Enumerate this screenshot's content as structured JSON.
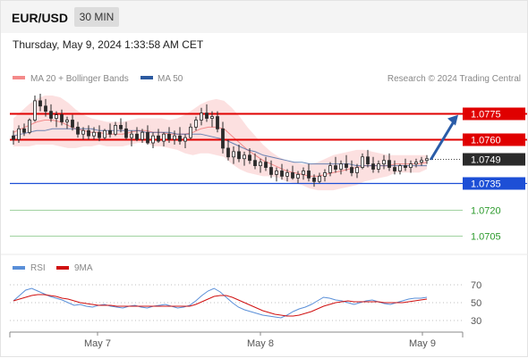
{
  "header": {
    "symbol": "EUR/USD",
    "timeframe": "30 MIN",
    "datetime": "Thursday, May 9, 2024 1:33:58 AM CET"
  },
  "legend": {
    "bb": "MA 20 + Bollinger Bands",
    "ma50": "MA 50",
    "credit": "Research © 2024 Trading Central",
    "rsi": "RSI",
    "ma9": "9MA"
  },
  "colors": {
    "bb_line": "#f48a8a",
    "bb_band": "#fbd6d6",
    "ma50": "#2c5aa0",
    "resistance": "#e00000",
    "support": "#1d4fd6",
    "target": "#2b9a2b",
    "arrow": "#2a5ca8",
    "candle_up": "#2a2a2a",
    "candle_down": "#2a2a2a",
    "rsi_line": "#5a8fd8",
    "rsi_ma": "#d01010"
  },
  "chart_data": [
    {
      "type": "line",
      "name": "price",
      "ylim": [
        1.07,
        1.0785
      ],
      "levels": [
        {
          "label": "1.0775",
          "value": 1.0775,
          "kind": "resistance"
        },
        {
          "label": "1.0760",
          "value": 1.076,
          "kind": "resistance"
        },
        {
          "label": "1.0749",
          "value": 1.0749,
          "kind": "current"
        },
        {
          "label": "1.0735",
          "value": 1.0735,
          "kind": "support"
        },
        {
          "label": "1.0720",
          "value": 1.072,
          "kind": "target"
        },
        {
          "label": "1.0705",
          "value": 1.0705,
          "kind": "target"
        }
      ],
      "x_ticks": [
        "May 7",
        "May 8",
        "May 9"
      ],
      "arrow": {
        "from": 1.0749,
        "to": 1.0775,
        "direction": "up"
      },
      "candles": [
        [
          1.0762,
          1.0765,
          1.0757,
          1.076
        ],
        [
          1.076,
          1.0768,
          1.0758,
          1.0766
        ],
        [
          1.0766,
          1.0769,
          1.0762,
          1.0764
        ],
        [
          1.0764,
          1.0772,
          1.0763,
          1.0771
        ],
        [
          1.0771,
          1.0785,
          1.077,
          1.0782
        ],
        [
          1.0782,
          1.0786,
          1.0776,
          1.0779
        ],
        [
          1.0779,
          1.0783,
          1.0773,
          1.0776
        ],
        [
          1.0776,
          1.078,
          1.077,
          1.0772
        ],
        [
          1.0772,
          1.0776,
          1.0767,
          1.0774
        ],
        [
          1.0774,
          1.0777,
          1.0768,
          1.077
        ],
        [
          1.077,
          1.0773,
          1.0766,
          1.0771
        ],
        [
          1.0771,
          1.0774,
          1.0765,
          1.0767
        ],
        [
          1.0767,
          1.077,
          1.0761,
          1.0763
        ],
        [
          1.0763,
          1.0767,
          1.076,
          1.0765
        ],
        [
          1.0765,
          1.0768,
          1.076,
          1.0762
        ],
        [
          1.0762,
          1.0767,
          1.076,
          1.0764
        ],
        [
          1.0764,
          1.0768,
          1.0759,
          1.0761
        ],
        [
          1.0761,
          1.0766,
          1.076,
          1.0765
        ],
        [
          1.0765,
          1.0769,
          1.0761,
          1.0763
        ],
        [
          1.0763,
          1.077,
          1.0762,
          1.0768
        ],
        [
          1.0768,
          1.0772,
          1.0764,
          1.0766
        ],
        [
          1.0766,
          1.077,
          1.076,
          1.0761
        ],
        [
          1.0761,
          1.0765,
          1.0756,
          1.0763
        ],
        [
          1.0763,
          1.0767,
          1.0759,
          1.076
        ],
        [
          1.076,
          1.0766,
          1.0758,
          1.0764
        ],
        [
          1.0764,
          1.0768,
          1.0757,
          1.0758
        ],
        [
          1.0758,
          1.0764,
          1.0755,
          1.0762
        ],
        [
          1.0762,
          1.0766,
          1.0758,
          1.0759
        ],
        [
          1.0759,
          1.0764,
          1.0756,
          1.0763
        ],
        [
          1.0763,
          1.0767,
          1.0758,
          1.076
        ],
        [
          1.076,
          1.0765,
          1.0757,
          1.0762
        ],
        [
          1.0762,
          1.0767,
          1.0757,
          1.0759
        ],
        [
          1.0759,
          1.0763,
          1.0755,
          1.0761
        ],
        [
          1.0761,
          1.0769,
          1.076,
          1.0767
        ],
        [
          1.0767,
          1.0773,
          1.0765,
          1.0771
        ],
        [
          1.0771,
          1.0778,
          1.0768,
          1.0775
        ],
        [
          1.0775,
          1.078,
          1.077,
          1.0772
        ],
        [
          1.0772,
          1.0776,
          1.0767,
          1.0773
        ],
        [
          1.0773,
          1.0776,
          1.0764,
          1.0766
        ],
        [
          1.0766,
          1.077,
          1.0752,
          1.0755
        ],
        [
          1.0755,
          1.076,
          1.0748,
          1.075
        ],
        [
          1.075,
          1.0756,
          1.0746,
          1.0753
        ],
        [
          1.0753,
          1.0757,
          1.0747,
          1.0749
        ],
        [
          1.0749,
          1.0753,
          1.0745,
          1.0751
        ],
        [
          1.0751,
          1.0755,
          1.0746,
          1.0748
        ],
        [
          1.0748,
          1.0752,
          1.0743,
          1.0745
        ],
        [
          1.0745,
          1.0749,
          1.0741,
          1.0747
        ],
        [
          1.0747,
          1.075,
          1.0742,
          1.0744
        ],
        [
          1.0744,
          1.0748,
          1.0738,
          1.074
        ],
        [
          1.074,
          1.0744,
          1.0736,
          1.0742
        ],
        [
          1.0742,
          1.0746,
          1.0737,
          1.0739
        ],
        [
          1.0739,
          1.0743,
          1.0736,
          1.0741
        ],
        [
          1.0741,
          1.0745,
          1.0737,
          1.0738
        ],
        [
          1.0738,
          1.0742,
          1.0735,
          1.074
        ],
        [
          1.074,
          1.0744,
          1.0737,
          1.0742
        ],
        [
          1.0742,
          1.0746,
          1.0736,
          1.0738
        ],
        [
          1.0738,
          1.074,
          1.0733,
          1.0736
        ],
        [
          1.0736,
          1.0741,
          1.0735,
          1.0739
        ],
        [
          1.0739,
          1.0743,
          1.0736,
          1.0741
        ],
        [
          1.0741,
          1.0747,
          1.0739,
          1.0745
        ],
        [
          1.0745,
          1.075,
          1.0741,
          1.0743
        ],
        [
          1.0743,
          1.0748,
          1.074,
          1.0746
        ],
        [
          1.0746,
          1.0751,
          1.0742,
          1.0744
        ],
        [
          1.0744,
          1.0748,
          1.0739,
          1.0741
        ],
        [
          1.0741,
          1.0746,
          1.0738,
          1.0744
        ],
        [
          1.0744,
          1.0752,
          1.0743,
          1.075
        ],
        [
          1.075,
          1.0754,
          1.0744,
          1.0746
        ],
        [
          1.0746,
          1.075,
          1.0741,
          1.0743
        ],
        [
          1.0743,
          1.0748,
          1.0741,
          1.0746
        ],
        [
          1.0746,
          1.0751,
          1.0743,
          1.0748
        ],
        [
          1.0748,
          1.0752,
          1.0742,
          1.0744
        ],
        [
          1.0744,
          1.0748,
          1.074,
          1.0742
        ],
        [
          1.0742,
          1.0746,
          1.074,
          1.0745
        ],
        [
          1.0745,
          1.0749,
          1.0742,
          1.0744
        ],
        [
          1.0744,
          1.0748,
          1.0741,
          1.0746
        ],
        [
          1.0746,
          1.0749,
          1.0744,
          1.0747
        ],
        [
          1.0747,
          1.075,
          1.0745,
          1.0748
        ],
        [
          1.0748,
          1.0751,
          1.0746,
          1.0749
        ]
      ],
      "bollinger_mid": [
        1.0764,
        1.0766,
        1.0768,
        1.077,
        1.0771,
        1.0771,
        1.077,
        1.0768,
        1.0766,
        1.0765,
        1.0764,
        1.0764,
        1.0763,
        1.0763,
        1.0763,
        1.0764,
        1.0765,
        1.0765,
        1.0764,
        1.0764,
        1.0763,
        1.0763,
        1.0763,
        1.0764,
        1.0766,
        1.0767,
        1.0767,
        1.0766,
        1.0762,
        1.0758,
        1.0754,
        1.0751,
        1.0748,
        1.0746,
        1.0744,
        1.0742,
        1.0741,
        1.074,
        1.0739,
        1.0739,
        1.074,
        1.0741,
        1.0742,
        1.0743,
        1.0744,
        1.0745,
        1.0745,
        1.0745,
        1.0745,
        1.0746,
        1.0746,
        1.0746,
        1.0746,
        1.0747
      ],
      "bollinger_upper": [
        1.0772,
        1.0776,
        1.078,
        1.0783,
        1.0785,
        1.0785,
        1.0784,
        1.0781,
        1.0777,
        1.0774,
        1.0772,
        1.0771,
        1.077,
        1.077,
        1.077,
        1.0771,
        1.0772,
        1.0772,
        1.0772,
        1.0772,
        1.0771,
        1.0772,
        1.0774,
        1.0777,
        1.078,
        1.0782,
        1.0783,
        1.0782,
        1.0778,
        1.0773,
        1.0767,
        1.0762,
        1.0757,
        1.0753,
        1.075,
        1.0748,
        1.0747,
        1.0746,
        1.0746,
        1.0747,
        1.0749,
        1.0751,
        1.0752,
        1.0753,
        1.0754,
        1.0754,
        1.0753,
        1.0752,
        1.0751,
        1.0751,
        1.0751,
        1.0751,
        1.0751,
        1.0751
      ],
      "bollinger_lower": [
        1.0756,
        1.0756,
        1.0756,
        1.0757,
        1.0757,
        1.0757,
        1.0756,
        1.0755,
        1.0755,
        1.0756,
        1.0756,
        1.0757,
        1.0756,
        1.0756,
        1.0756,
        1.0757,
        1.0758,
        1.0758,
        1.0756,
        1.0756,
        1.0755,
        1.0754,
        1.0752,
        1.0751,
        1.0752,
        1.0752,
        1.0751,
        1.075,
        1.0746,
        1.0743,
        1.0741,
        1.074,
        1.0739,
        1.0739,
        1.0738,
        1.0736,
        1.0735,
        1.0734,
        1.0732,
        1.0731,
        1.0731,
        1.0731,
        1.0732,
        1.0733,
        1.0734,
        1.0736,
        1.0737,
        1.0738,
        1.0739,
        1.0741,
        1.0741,
        1.0741,
        1.0741,
        1.0743
      ],
      "ma50": [
        1.0762,
        1.0763,
        1.0764,
        1.0765,
        1.0765,
        1.0766,
        1.0766,
        1.0766,
        1.0766,
        1.0766,
        1.0766,
        1.0765,
        1.0765,
        1.0765,
        1.0765,
        1.0765,
        1.0765,
        1.0764,
        1.0764,
        1.0764,
        1.0764,
        1.0763,
        1.0763,
        1.0763,
        1.0763,
        1.0762,
        1.0761,
        1.076,
        1.0758,
        1.0756,
        1.0754,
        1.0753,
        1.0751,
        1.075,
        1.0749,
        1.0748,
        1.0747,
        1.0747,
        1.0746,
        1.0746,
        1.0746,
        1.0746,
        1.0746,
        1.0746,
        1.0745,
        1.0745,
        1.0745,
        1.0745,
        1.0745,
        1.0745,
        1.0745,
        1.0745,
        1.0745,
        1.0745
      ]
    },
    {
      "type": "line",
      "name": "rsi",
      "ylim": [
        20,
        80
      ],
      "y_ticks": [
        "70",
        "50",
        "30"
      ],
      "rsi": [
        52,
        58,
        64,
        66,
        63,
        60,
        57,
        55,
        53,
        50,
        47,
        48,
        46,
        45,
        47,
        48,
        46,
        45,
        44,
        46,
        47,
        45,
        44,
        46,
        47,
        48,
        46,
        44,
        45,
        47,
        52,
        58,
        63,
        66,
        62,
        56,
        50,
        45,
        42,
        40,
        38,
        36,
        35,
        34,
        33,
        36,
        40,
        43,
        45,
        48,
        52,
        56,
        55,
        53,
        52,
        50,
        48,
        50,
        52,
        53,
        51,
        49,
        48,
        50,
        52,
        54,
        55,
        55,
        56
      ],
      "ma9": [
        52,
        54,
        56,
        58,
        59,
        59,
        58,
        57,
        55,
        54,
        52,
        50,
        49,
        48,
        47,
        47,
        47,
        46,
        46,
        46,
        46,
        46,
        46,
        46,
        46,
        46,
        46,
        46,
        46,
        46,
        48,
        51,
        54,
        57,
        58,
        58,
        56,
        53,
        50,
        47,
        44,
        41,
        39,
        37,
        36,
        35,
        35,
        36,
        38,
        40,
        43,
        46,
        48,
        50,
        51,
        52,
        51,
        51,
        51,
        51,
        51,
        50,
        50,
        50,
        50,
        51,
        52,
        53,
        54
      ]
    }
  ]
}
